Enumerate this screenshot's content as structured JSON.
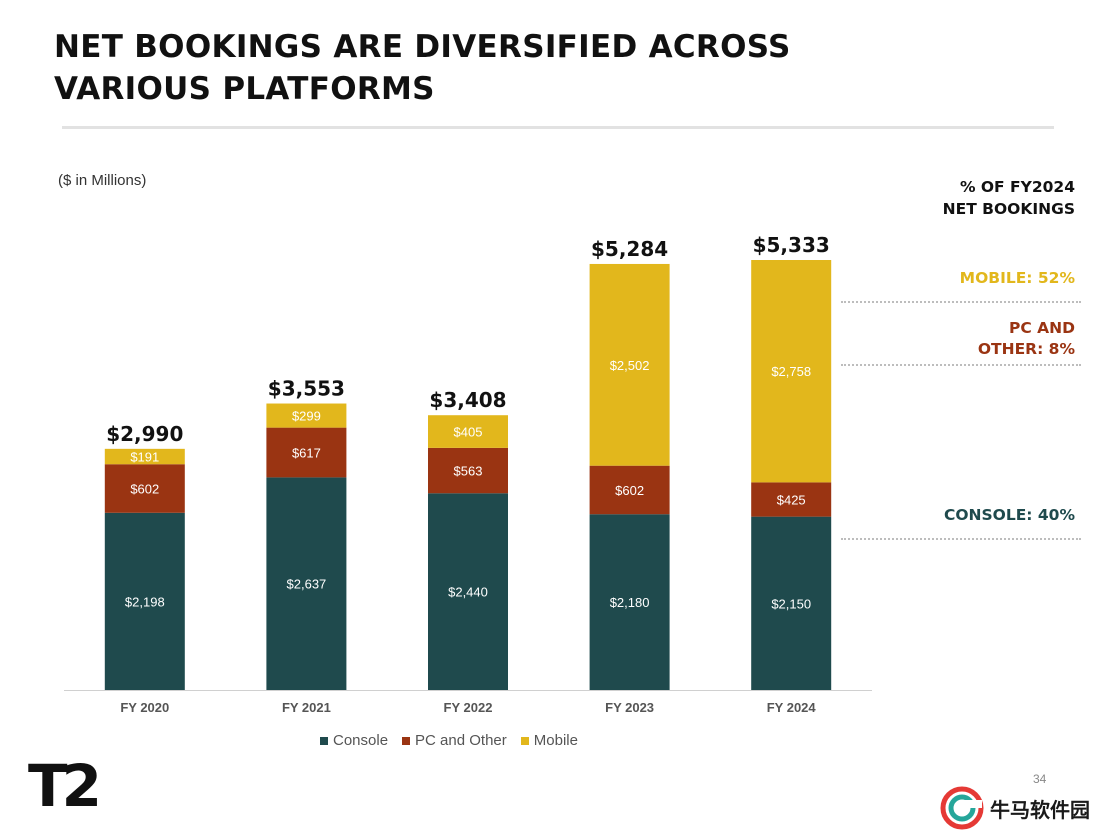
{
  "title": [
    "NET BOOKINGS ARE DIVERSIFIED ACROSS",
    "VARIOUS PLATFORMS"
  ],
  "unit_note": "($ in Millions)",
  "side_panel": {
    "heading": [
      "% OF FY2024",
      "NET BOOKINGS"
    ],
    "mobile": [
      "MOBILE: 52%"
    ],
    "pc": [
      "PC AND",
      "OTHER: 8%"
    ],
    "console": [
      "CONSOLE: 40%"
    ]
  },
  "legend": [
    "Console",
    "PC and Other",
    "Mobile"
  ],
  "colors": {
    "console": "#1f4a4d",
    "pc": "#9a3412",
    "mobile": "#e2b71c",
    "total_text": "#111111"
  },
  "logo_text": "T2",
  "page_number": "34",
  "watermark": "牛马软件园",
  "chart_data": {
    "type": "bar",
    "stacked": true,
    "categories": [
      "FY 2020",
      "FY 2021",
      "FY 2022",
      "FY 2023",
      "FY 2024"
    ],
    "series": [
      {
        "name": "Console",
        "values": [
          2198,
          2637,
          2440,
          2180,
          2150
        ],
        "labels": [
          "$2,198",
          "$2,637",
          "$2,440",
          "$2,180",
          "$2,150"
        ]
      },
      {
        "name": "PC and Other",
        "values": [
          602,
          617,
          563,
          602,
          425
        ],
        "labels": [
          "$602",
          "$617",
          "$563",
          "$602",
          "$425"
        ]
      },
      {
        "name": "Mobile",
        "values": [
          191,
          299,
          405,
          2502,
          2758
        ],
        "labels": [
          "$191",
          "$299",
          "$405",
          "$2,502",
          "$2,758"
        ]
      }
    ],
    "totals": [
      2990,
      3553,
      3408,
      5284,
      5333
    ],
    "total_labels": [
      "$2,990",
      "$3,553",
      "$3,408",
      "$5,284",
      "$5,333"
    ],
    "ylim": [
      0,
      5333
    ],
    "grid": false,
    "legend_position": "bottom"
  }
}
